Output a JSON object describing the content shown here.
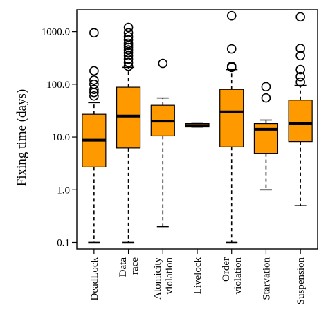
{
  "chart_data": {
    "type": "box",
    "ylabel": "Fixing time (days)",
    "yscale": "log",
    "ylim": [
      0.1,
      2000
    ],
    "yticks": [
      {
        "value": 0.1,
        "label": "0.1"
      },
      {
        "value": 1,
        "label": "1.0"
      },
      {
        "value": 10,
        "label": "10.0"
      },
      {
        "value": 100,
        "label": "100.0"
      },
      {
        "value": 1000,
        "label": "1000.0"
      }
    ],
    "colors": {
      "box_fill": "#ff9900",
      "stroke": "#000000"
    },
    "categories": [
      {
        "label_lines": [
          "DeadLock"
        ],
        "whisker_low": 0.1,
        "q1": 2.7,
        "median": 8.7,
        "q3": 27,
        "whisker_high": 45,
        "outliers": [
          60,
          70,
          80,
          100,
          120,
          180,
          950
        ]
      },
      {
        "label_lines": [
          "Data",
          "race"
        ],
        "whisker_low": 0.1,
        "q1": 6.2,
        "median": 25,
        "q3": 88,
        "whisker_high": 210,
        "outliers": [
          220,
          260,
          300,
          350,
          400,
          450,
          500,
          550,
          600,
          700,
          800,
          950,
          1200
        ]
      },
      {
        "label_lines": [
          "Atomicity",
          "violation"
        ],
        "whisker_low": 0.2,
        "q1": 10.5,
        "median": 20,
        "q3": 40,
        "whisker_high": 55,
        "outliers": [
          250
        ]
      },
      {
        "label_lines": [
          "Livelock"
        ],
        "whisker_low": 15.5,
        "q1": 15.5,
        "median": 16.5,
        "q3": 18,
        "whisker_high": 18,
        "outliers": []
      },
      {
        "label_lines": [
          "Order",
          "violation"
        ],
        "whisker_low": 0.1,
        "q1": 6.5,
        "median": 30,
        "q3": 80,
        "whisker_high": 190,
        "outliers": [
          210,
          220,
          470,
          2000
        ]
      },
      {
        "label_lines": [
          "Starvation"
        ],
        "whisker_low": 1.0,
        "q1": 4.9,
        "median": 14,
        "q3": 18,
        "whisker_high": 21,
        "outliers": [
          55,
          90
        ]
      },
      {
        "label_lines": [
          "Suspension"
        ],
        "whisker_low": 0.5,
        "q1": 8.2,
        "median": 18,
        "q3": 50,
        "whisker_high": 95,
        "outliers": [
          110,
          140,
          190,
          350,
          480,
          1900
        ]
      }
    ]
  }
}
